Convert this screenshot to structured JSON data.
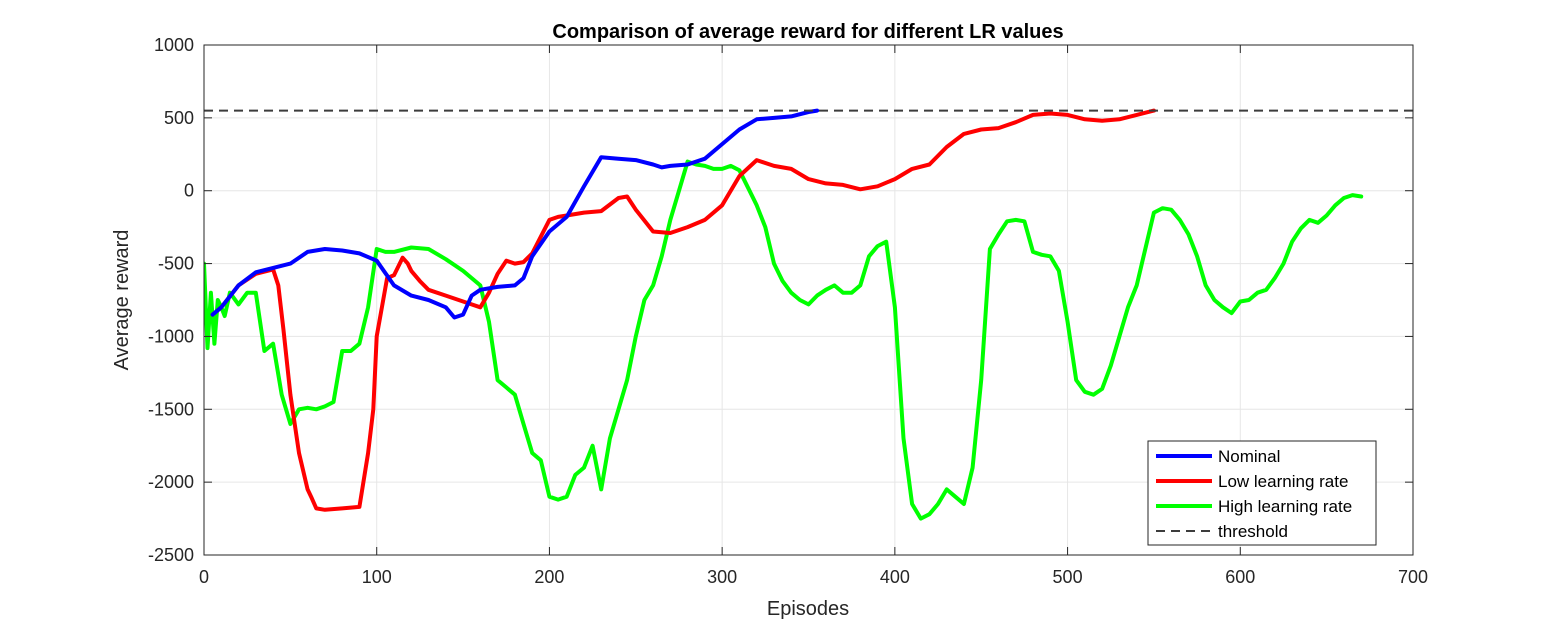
{
  "chart_data": {
    "type": "line",
    "title": "Comparison of average reward for different LR values",
    "xlabel": "Episodes",
    "ylabel": "Average reward",
    "xlim": [
      0,
      700
    ],
    "ylim": [
      -2500,
      1000
    ],
    "xticks": [
      0,
      100,
      200,
      300,
      400,
      500,
      600,
      700
    ],
    "yticks": [
      1000,
      500,
      0,
      -500,
      -1000,
      -1500,
      -2000,
      -2500
    ],
    "xtick_labels": [
      "0",
      "100",
      "200",
      "300",
      "400",
      "500",
      "600",
      "700"
    ],
    "ytick_labels": [
      "1000",
      "500",
      "0",
      "-500",
      "-1000",
      "-1500",
      "-2000",
      "-2500"
    ],
    "grid": true,
    "legend_position": "bottom-right",
    "series": [
      {
        "name": "Nominal",
        "color": "#0000ff",
        "style": "solid",
        "x": [
          5,
          10,
          20,
          30,
          40,
          50,
          60,
          70,
          80,
          90,
          100,
          110,
          120,
          130,
          140,
          145,
          150,
          155,
          160,
          170,
          180,
          185,
          190,
          200,
          210,
          220,
          230,
          240,
          250,
          260,
          265,
          270,
          280,
          290,
          300,
          310,
          320,
          330,
          340,
          350,
          355
        ],
        "y": [
          -850,
          -800,
          -650,
          -560,
          -530,
          -500,
          -420,
          -400,
          -410,
          -430,
          -480,
          -650,
          -720,
          -750,
          -800,
          -870,
          -850,
          -720,
          -680,
          -660,
          -650,
          -600,
          -450,
          -280,
          -180,
          30,
          230,
          220,
          210,
          180,
          160,
          170,
          180,
          220,
          320,
          420,
          490,
          500,
          510,
          540,
          550
        ]
      },
      {
        "name": "Low learning rate",
        "color": "#ff0000",
        "style": "solid",
        "x": [
          5,
          10,
          20,
          30,
          40,
          43,
          46,
          50,
          55,
          60,
          62,
          65,
          70,
          80,
          90,
          95,
          98,
          100,
          103,
          106,
          110,
          115,
          118,
          120,
          125,
          130,
          140,
          150,
          160,
          165,
          170,
          175,
          180,
          185,
          190,
          200,
          205,
          210,
          220,
          230,
          240,
          245,
          250,
          260,
          270,
          280,
          290,
          300,
          310,
          320,
          330,
          340,
          350,
          360,
          370,
          380,
          390,
          400,
          410,
          420,
          430,
          440,
          450,
          460,
          470,
          480,
          490,
          500,
          510,
          520,
          530,
          540,
          550
        ],
        "y": [
          -850,
          -800,
          -650,
          -570,
          -540,
          -650,
          -950,
          -1400,
          -1800,
          -2050,
          -2100,
          -2180,
          -2190,
          -2180,
          -2170,
          -1800,
          -1500,
          -1000,
          -800,
          -600,
          -580,
          -460,
          -500,
          -550,
          -620,
          -680,
          -720,
          -760,
          -800,
          -700,
          -570,
          -480,
          -500,
          -490,
          -430,
          -200,
          -180,
          -170,
          -150,
          -140,
          -50,
          -40,
          -130,
          -280,
          -290,
          -250,
          -200,
          -100,
          100,
          210,
          170,
          150,
          80,
          50,
          40,
          10,
          30,
          80,
          150,
          180,
          300,
          390,
          420,
          430,
          470,
          520,
          530,
          520,
          490,
          480,
          490,
          520,
          550
        ]
      },
      {
        "name": "High learning rate",
        "color": "#00ff00",
        "style": "solid",
        "x": [
          0,
          2,
          4,
          6,
          8,
          10,
          12,
          15,
          20,
          25,
          30,
          35,
          40,
          45,
          50,
          55,
          60,
          65,
          70,
          75,
          80,
          85,
          90,
          95,
          100,
          105,
          110,
          120,
          130,
          140,
          150,
          160,
          165,
          170,
          175,
          180,
          185,
          190,
          195,
          200,
          205,
          210,
          215,
          220,
          225,
          230,
          235,
          240,
          245,
          250,
          255,
          260,
          265,
          270,
          275,
          280,
          285,
          290,
          295,
          300,
          305,
          310,
          315,
          320,
          325,
          330,
          335,
          340,
          345,
          350,
          355,
          360,
          365,
          370,
          375,
          380,
          385,
          390,
          395,
          400,
          405,
          410,
          415,
          420,
          425,
          430,
          435,
          440,
          445,
          450,
          455,
          460,
          465,
          470,
          475,
          480,
          485,
          490,
          495,
          500,
          505,
          510,
          515,
          520,
          525,
          530,
          535,
          540,
          545,
          550,
          555,
          560,
          565,
          570,
          575,
          580,
          585,
          590,
          595,
          600,
          605,
          610,
          615,
          620,
          625,
          630,
          635,
          640,
          645,
          650,
          655,
          660,
          665,
          670
        ],
        "y": [
          -500,
          -1080,
          -700,
          -1050,
          -750,
          -800,
          -860,
          -700,
          -780,
          -700,
          -700,
          -1100,
          -1050,
          -1400,
          -1600,
          -1500,
          -1490,
          -1500,
          -1480,
          -1450,
          -1100,
          -1100,
          -1050,
          -800,
          -400,
          -420,
          -420,
          -390,
          -400,
          -470,
          -550,
          -650,
          -900,
          -1300,
          -1350,
          -1400,
          -1600,
          -1800,
          -1850,
          -2100,
          -2120,
          -2100,
          -1950,
          -1900,
          -1750,
          -2050,
          -1700,
          -1500,
          -1300,
          -1000,
          -750,
          -650,
          -450,
          -200,
          0,
          200,
          180,
          170,
          150,
          150,
          170,
          140,
          20,
          -100,
          -250,
          -500,
          -620,
          -700,
          -750,
          -780,
          -720,
          -680,
          -650,
          -700,
          -700,
          -650,
          -450,
          -380,
          -350,
          -800,
          -1700,
          -2150,
          -2250,
          -2220,
          -2150,
          -2050,
          -2100,
          -2150,
          -1900,
          -1300,
          -400,
          -300,
          -210,
          -200,
          -210,
          -420,
          -440,
          -450,
          -550,
          -900,
          -1300,
          -1380,
          -1400,
          -1360,
          -1200,
          -1000,
          -800,
          -650,
          -400,
          -150,
          -120,
          -130,
          -200,
          -300,
          -450,
          -650,
          -750,
          -800,
          -840,
          -760,
          -750,
          -700,
          -680,
          -600,
          -500,
          -350,
          -260,
          -200,
          -220,
          -170,
          -100,
          -50,
          -30,
          -40
        ]
      },
      {
        "name": "threshold",
        "color": "#3c3c3c",
        "style": "dashed",
        "x": [
          0,
          700
        ],
        "y": [
          550,
          550
        ]
      }
    ]
  }
}
